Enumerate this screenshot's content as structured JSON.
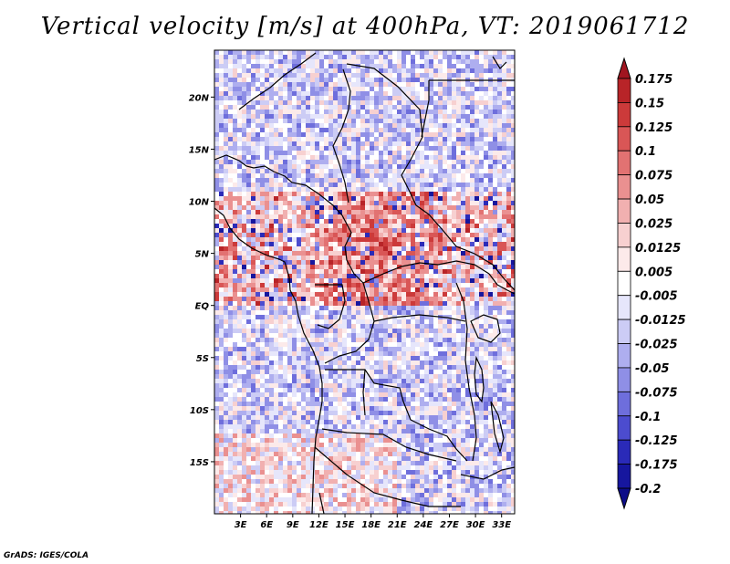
{
  "title": "Vertical velocity [m/s] at 400hPa, VT: 2019061712",
  "credit": "GrADS: IGES/COLA",
  "map": {
    "lon_range": [
      0,
      34.5
    ],
    "lat_range": [
      -20,
      24.5
    ],
    "lat_ticks": [
      {
        "value": 20,
        "label": "20N"
      },
      {
        "value": 15,
        "label": "15N"
      },
      {
        "value": 10,
        "label": "10N"
      },
      {
        "value": 5,
        "label": "5N"
      },
      {
        "value": 0,
        "label": "EQ"
      },
      {
        "value": -5,
        "label": "5S"
      },
      {
        "value": -10,
        "label": "10S"
      },
      {
        "value": -15,
        "label": "15S"
      }
    ],
    "lon_ticks": [
      {
        "value": 3,
        "label": "3E"
      },
      {
        "value": 6,
        "label": "6E"
      },
      {
        "value": 9,
        "label": "9E"
      },
      {
        "value": 12,
        "label": "12E"
      },
      {
        "value": 15,
        "label": "15E"
      },
      {
        "value": 18,
        "label": "18E"
      },
      {
        "value": 21,
        "label": "21E"
      },
      {
        "value": 24,
        "label": "24E"
      },
      {
        "value": 27,
        "label": "27E"
      },
      {
        "value": 30,
        "label": "30E"
      },
      {
        "value": 33,
        "label": "33E"
      }
    ]
  },
  "colorbar": {
    "labels": [
      "0.175",
      "0.15",
      "0.125",
      "0.1",
      "0.075",
      "0.05",
      "0.025",
      "0.0125",
      "0.005",
      "-0.005",
      "-0.0125",
      "-0.025",
      "-0.05",
      "-0.075",
      "-0.1",
      "-0.125",
      "-0.175",
      "-0.2"
    ],
    "colors": [
      "#a11520",
      "#b82428",
      "#cc3a3a",
      "#d95656",
      "#e27272",
      "#ea9090",
      "#f1b0b0",
      "#f7d0d0",
      "#fceaea",
      "#ffffff",
      "#e6e6fb",
      "#ccccf5",
      "#aeaeef",
      "#8f8fe6",
      "#6e6edc",
      "#4c4ccf",
      "#2a2ab8",
      "#16169e",
      "#0c0c88"
    ]
  }
}
